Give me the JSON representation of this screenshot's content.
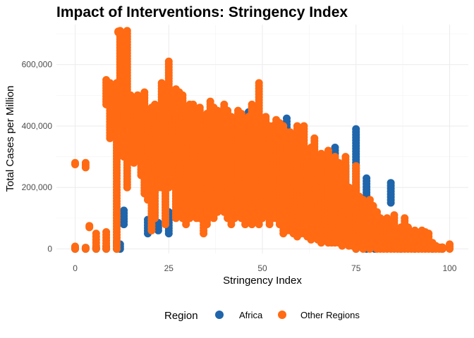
{
  "chart_data": {
    "type": "scatter",
    "title": "Impact of Interventions: Stringency Index",
    "xlabel": "Stringency Index",
    "ylabel": "Total Cases per Million",
    "xlim": [
      -5,
      105
    ],
    "ylim": [
      -15000,
      730000
    ],
    "x_ticks": [
      0,
      25,
      50,
      75,
      100
    ],
    "x_tick_labels": [
      "0",
      "25",
      "50",
      "75",
      "100"
    ],
    "y_ticks": [
      0,
      200000,
      400000,
      600000
    ],
    "y_tick_labels": [
      "0",
      "200,000",
      "400,000",
      "600,000"
    ],
    "grid": true,
    "legend": {
      "title": "Region",
      "position": "bottom",
      "entries": [
        {
          "label": "Africa",
          "color": "#1f65ab"
        },
        {
          "label": "Other Regions",
          "color": "#ff6a13"
        }
      ]
    },
    "series": [
      {
        "name": "Africa",
        "color": "#1f65ab",
        "columns": [
          [
            0,
            0,
            5000
          ],
          [
            2.8,
            0,
            4000
          ],
          [
            5.6,
            0,
            4000
          ],
          [
            8.3,
            0,
            8000
          ],
          [
            11.1,
            0,
            20000
          ],
          [
            12,
            0,
            15000
          ],
          [
            13,
            80000,
            125000
          ],
          [
            19.4,
            50000,
            95000
          ],
          [
            22.2,
            60000,
            85000
          ],
          [
            25,
            50000,
            120000
          ],
          [
            30,
            100000,
            130000
          ],
          [
            40,
            150000,
            190000
          ],
          [
            43,
            200000,
            250000
          ],
          [
            46.3,
            405000,
            445000
          ],
          [
            53.7,
            380000,
            410000
          ],
          [
            56.5,
            385000,
            425000
          ],
          [
            60,
            160000,
            210000
          ],
          [
            65,
            180000,
            225000
          ],
          [
            69.4,
            180000,
            330000
          ],
          [
            72.2,
            150000,
            270000
          ],
          [
            75,
            0,
            390000
          ],
          [
            77.8,
            0,
            230000
          ],
          [
            80,
            0,
            100000
          ],
          [
            84.3,
            150000,
            215000
          ],
          [
            87,
            0,
            40000
          ],
          [
            90.7,
            0,
            20000
          ],
          [
            95.4,
            0,
            15000
          ],
          [
            98,
            0,
            5000
          ]
        ]
      },
      {
        "name": "Other Regions",
        "color": "#ff6a13",
        "columns": [
          [
            0,
            0,
            8000
          ],
          [
            0,
            275000,
            280000
          ],
          [
            2.8,
            0,
            4000
          ],
          [
            2.8,
            265000,
            280000
          ],
          [
            3.8,
            70000,
            75000
          ],
          [
            5.6,
            0,
            50000
          ],
          [
            8.3,
            0,
            55000
          ],
          [
            8.3,
            470000,
            550000
          ],
          [
            9.3,
            360000,
            540000
          ],
          [
            10.2,
            450000,
            510000
          ],
          [
            11.1,
            0,
            540000
          ],
          [
            11.5,
            705000,
            708000
          ],
          [
            12,
            380000,
            710000
          ],
          [
            13,
            300000,
            660000
          ],
          [
            13.9,
            200000,
            710000
          ],
          [
            14.8,
            360000,
            500000
          ],
          [
            15.7,
            280000,
            480000
          ],
          [
            16.7,
            320000,
            500000
          ],
          [
            17.6,
            240000,
            490000
          ],
          [
            18.5,
            180000,
            510000
          ],
          [
            19.4,
            160000,
            430000
          ],
          [
            20.4,
            60000,
            460000
          ],
          [
            21.3,
            100000,
            470000
          ],
          [
            22.2,
            200000,
            460000
          ],
          [
            23.1,
            200000,
            540000
          ],
          [
            24.1,
            80000,
            500000
          ],
          [
            25,
            200000,
            610000
          ],
          [
            25.9,
            280000,
            480000
          ],
          [
            26.9,
            100000,
            520000
          ],
          [
            27.8,
            150000,
            510000
          ],
          [
            28.7,
            100000,
            500000
          ],
          [
            29.6,
            80000,
            450000
          ],
          [
            30.6,
            100000,
            470000
          ],
          [
            31.5,
            150000,
            470000
          ],
          [
            32.4,
            100000,
            430000
          ],
          [
            33.3,
            100000,
            460000
          ],
          [
            34.3,
            50000,
            400000
          ],
          [
            35.2,
            80000,
            440000
          ],
          [
            36.1,
            150000,
            480000
          ],
          [
            37,
            100000,
            460000
          ],
          [
            38,
            120000,
            450000
          ],
          [
            38.9,
            150000,
            440000
          ],
          [
            39.8,
            120000,
            470000
          ],
          [
            40.7,
            100000,
            450000
          ],
          [
            41.7,
            80000,
            430000
          ],
          [
            42.6,
            100000,
            400000
          ],
          [
            43.5,
            120000,
            450000
          ],
          [
            44.4,
            100000,
            440000
          ],
          [
            45.4,
            80000,
            420000
          ],
          [
            46.3,
            120000,
            430000
          ],
          [
            47.2,
            80000,
            470000
          ],
          [
            48.1,
            100000,
            440000
          ],
          [
            49.1,
            80000,
            540000
          ],
          [
            50,
            100000,
            420000
          ],
          [
            50.9,
            120000,
            430000
          ],
          [
            51.9,
            80000,
            400000
          ],
          [
            52.8,
            100000,
            400000
          ],
          [
            53.7,
            100000,
            420000
          ],
          [
            54.6,
            80000,
            410000
          ],
          [
            55.6,
            50000,
            400000
          ],
          [
            56.5,
            60000,
            380000
          ],
          [
            57.4,
            60000,
            380000
          ],
          [
            58.3,
            50000,
            370000
          ],
          [
            59.3,
            40000,
            400000
          ],
          [
            60.2,
            50000,
            350000
          ],
          [
            61.1,
            50000,
            400000
          ],
          [
            62,
            40000,
            300000
          ],
          [
            63,
            30000,
            330000
          ],
          [
            63.9,
            40000,
            360000
          ],
          [
            64.8,
            30000,
            250000
          ],
          [
            65.7,
            20000,
            310000
          ],
          [
            66.7,
            30000,
            250000
          ],
          [
            67.6,
            20000,
            320000
          ],
          [
            68.5,
            20000,
            250000
          ],
          [
            69.4,
            20000,
            300000
          ],
          [
            70.4,
            20000,
            280000
          ],
          [
            71.3,
            10000,
            180000
          ],
          [
            72.2,
            20000,
            300000
          ],
          [
            73.1,
            10000,
            200000
          ],
          [
            74.1,
            10000,
            180000
          ],
          [
            75,
            0,
            270000
          ],
          [
            75.9,
            10000,
            170000
          ],
          [
            76.9,
            0,
            160000
          ],
          [
            77.8,
            10000,
            150000
          ],
          [
            78.7,
            0,
            160000
          ],
          [
            79.6,
            10000,
            140000
          ],
          [
            80.6,
            0,
            120000
          ],
          [
            81.5,
            0,
            100000
          ],
          [
            82.4,
            0,
            90000
          ],
          [
            83.3,
            0,
            100000
          ],
          [
            84.3,
            0,
            80000
          ],
          [
            85.2,
            0,
            110000
          ],
          [
            86.1,
            0,
            60000
          ],
          [
            87,
            0,
            70000
          ],
          [
            88,
            0,
            100000
          ],
          [
            88.9,
            0,
            70000
          ],
          [
            89.8,
            0,
            50000
          ],
          [
            90.7,
            0,
            60000
          ],
          [
            91.7,
            0,
            40000
          ],
          [
            92.6,
            0,
            60000
          ],
          [
            93.5,
            0,
            55000
          ],
          [
            94.4,
            0,
            50000
          ],
          [
            95.4,
            0,
            20000
          ],
          [
            96.3,
            0,
            10000
          ],
          [
            97.2,
            0,
            5000
          ],
          [
            98.1,
            0,
            5000
          ],
          [
            100,
            0,
            15000
          ]
        ]
      }
    ]
  }
}
